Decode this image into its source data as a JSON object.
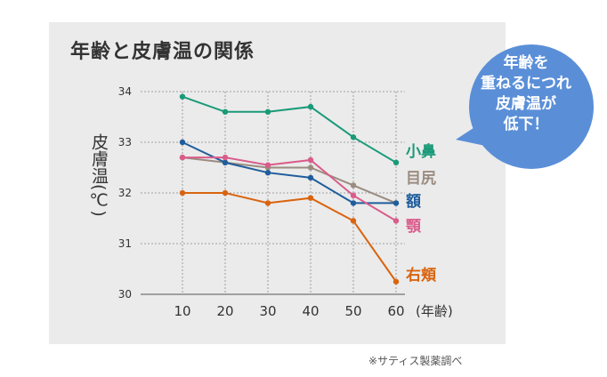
{
  "title": "年齢と皮膚温の関係",
  "source": "※サティス製薬調べ",
  "callout": {
    "lines": [
      "年齢を",
      "重ねるにつれ",
      "皮膚温が",
      "低下！"
    ],
    "color": "#5a8fd8"
  },
  "chart_data": {
    "type": "line",
    "ylabel": "皮膚温(℃)",
    "xlabel": "(年齢)",
    "x": [
      10,
      20,
      30,
      40,
      50,
      60
    ],
    "ylim": [
      30,
      34
    ],
    "yticks": [
      30,
      31,
      32,
      33,
      34
    ],
    "grid": true,
    "series": [
      {
        "name": "小鼻",
        "color": "#1a9a78",
        "values": [
          33.9,
          33.6,
          33.6,
          33.7,
          33.1,
          32.6
        ]
      },
      {
        "name": "目尻",
        "color": "#9a8c80",
        "values": [
          32.7,
          32.6,
          32.5,
          32.5,
          32.15,
          31.8
        ]
      },
      {
        "name": "額",
        "color": "#1f5d9c",
        "values": [
          33.0,
          32.6,
          32.4,
          32.3,
          31.8,
          31.8
        ]
      },
      {
        "name": "顎",
        "color": "#d95c8a",
        "values": [
          32.7,
          32.7,
          32.55,
          32.65,
          31.95,
          31.45
        ]
      },
      {
        "name": "右頬",
        "color": "#d9640f",
        "values": [
          32.0,
          32.0,
          31.8,
          31.9,
          31.45,
          30.25
        ]
      }
    ]
  }
}
